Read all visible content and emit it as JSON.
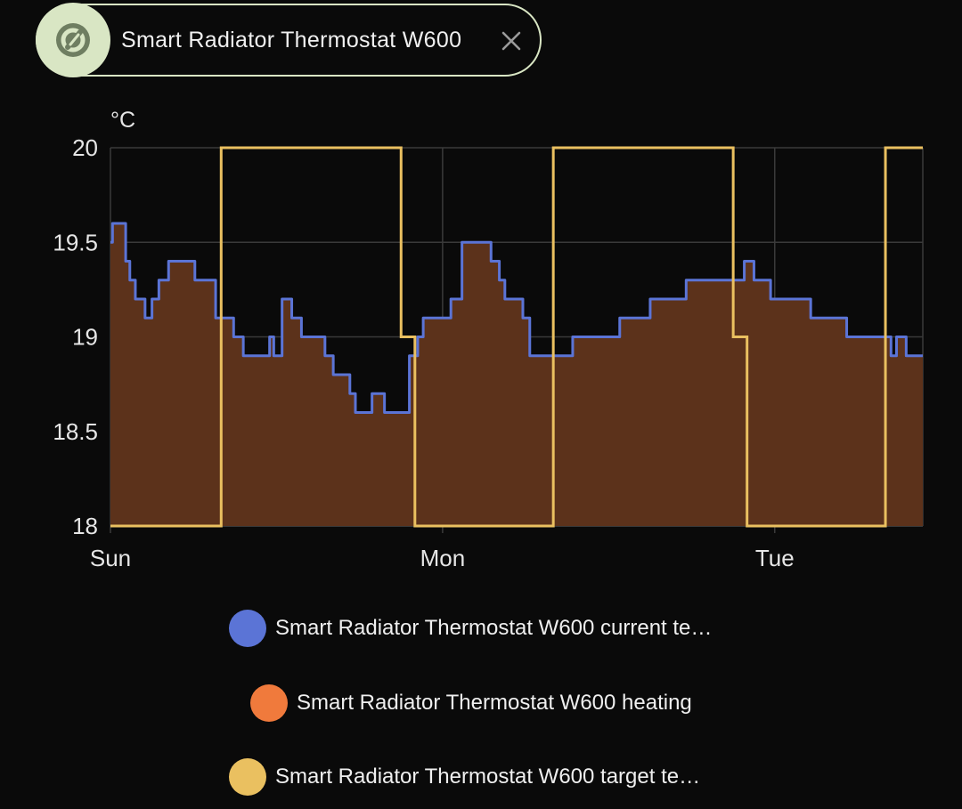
{
  "chip": {
    "label": "Smart Radiator Thermostat W600",
    "icon": "thermostat-icon",
    "close_icon": "close-icon"
  },
  "colors": {
    "current_temperature": "#5b74d6",
    "heating": "#f07a3c",
    "heating_fill": "#5c321b",
    "target_temperature": "#eac060",
    "grid": "#3a3a3a",
    "chip_accent": "#d9e6c4"
  },
  "chart_data": {
    "type": "line",
    "ylabel": "°C",
    "ylim": [
      18,
      20
    ],
    "yticks": [
      "18",
      "18.5",
      "19",
      "19.5",
      "20"
    ],
    "xlim_hours": [
      0,
      58.7
    ],
    "xticks": [
      {
        "label": "Sun",
        "hour": 0
      },
      {
        "label": "Mon",
        "hour": 24
      },
      {
        "label": "Tue",
        "hour": 48
      }
    ],
    "grid": true,
    "legend_position": "bottom",
    "series": [
      {
        "name": "Smart Radiator Thermostat W600 current te…",
        "key": "current",
        "step": true,
        "points": [
          [
            0,
            19.5
          ],
          [
            0.15,
            19.6
          ],
          [
            1.1,
            19.4
          ],
          [
            1.4,
            19.3
          ],
          [
            1.8,
            19.2
          ],
          [
            2.5,
            19.1
          ],
          [
            3.0,
            19.2
          ],
          [
            3.5,
            19.3
          ],
          [
            4.2,
            19.4
          ],
          [
            5.5,
            19.4
          ],
          [
            6.1,
            19.3
          ],
          [
            7.6,
            19.1
          ],
          [
            8.9,
            19.0
          ],
          [
            9.6,
            18.9
          ],
          [
            11.5,
            19.0
          ],
          [
            11.8,
            18.9
          ],
          [
            12.4,
            19.2
          ],
          [
            13.1,
            19.1
          ],
          [
            13.8,
            19.0
          ],
          [
            14.8,
            19.0
          ],
          [
            15.5,
            18.9
          ],
          [
            16.1,
            18.8
          ],
          [
            17.3,
            18.7
          ],
          [
            17.7,
            18.6
          ],
          [
            18.9,
            18.7
          ],
          [
            19.6,
            18.7
          ],
          [
            19.8,
            18.6
          ],
          [
            21.6,
            18.9
          ],
          [
            22.2,
            19.0
          ],
          [
            22.6,
            19.1
          ],
          [
            24.6,
            19.2
          ],
          [
            25.4,
            19.5
          ],
          [
            27.5,
            19.4
          ],
          [
            28.1,
            19.3
          ],
          [
            28.5,
            19.2
          ],
          [
            29.8,
            19.1
          ],
          [
            30.3,
            18.9
          ],
          [
            32.9,
            18.9
          ],
          [
            33.4,
            19.0
          ],
          [
            34.2,
            19.0
          ],
          [
            36.8,
            19.1
          ],
          [
            39.0,
            19.2
          ],
          [
            40.9,
            19.2
          ],
          [
            41.6,
            19.3
          ],
          [
            45.0,
            19.3
          ],
          [
            45.8,
            19.4
          ],
          [
            46.5,
            19.3
          ],
          [
            46.8,
            19.3
          ],
          [
            47.7,
            19.2
          ],
          [
            50.1,
            19.2
          ],
          [
            50.6,
            19.1
          ],
          [
            53.2,
            19.0
          ],
          [
            54.1,
            19.0
          ],
          [
            56.4,
            18.9
          ],
          [
            56.8,
            19.0
          ],
          [
            57.5,
            18.9
          ],
          [
            58.7,
            18.9
          ]
        ]
      },
      {
        "name": "Smart Radiator Thermostat W600 heating",
        "key": "heating",
        "area": true
      },
      {
        "name": "Smart Radiator Thermostat W600 target te…",
        "key": "target",
        "step": true,
        "points": [
          [
            0,
            18.0
          ],
          [
            8.0,
            20.0
          ],
          [
            21.0,
            19.0
          ],
          [
            22.0,
            18.0
          ],
          [
            32.0,
            20.0
          ],
          [
            45.0,
            19.0
          ],
          [
            46.0,
            18.0
          ],
          [
            56.0,
            20.0
          ],
          [
            58.7,
            20.0
          ]
        ]
      }
    ]
  }
}
